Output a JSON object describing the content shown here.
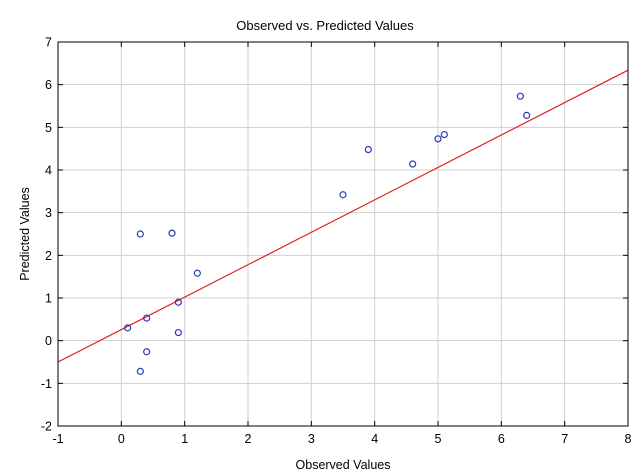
{
  "chart_data": {
    "type": "scatter",
    "title": "Observed vs. Predicted Values",
    "xlabel": "Observed Values",
    "ylabel": "Predicted Values",
    "xlim": [
      -1,
      8
    ],
    "ylim": [
      -2,
      7
    ],
    "xticks": [
      -1,
      0,
      1,
      2,
      3,
      4,
      5,
      6,
      7,
      8
    ],
    "yticks": [
      -2,
      -1,
      0,
      1,
      2,
      3,
      4,
      5,
      6,
      7
    ],
    "grid": true,
    "points": [
      {
        "x": 0.1,
        "y": 0.3
      },
      {
        "x": 0.3,
        "y": 2.5
      },
      {
        "x": 0.3,
        "y": -0.72
      },
      {
        "x": 0.4,
        "y": 0.53
      },
      {
        "x": 0.4,
        "y": -0.26
      },
      {
        "x": 0.8,
        "y": 2.52
      },
      {
        "x": 0.9,
        "y": 0.9
      },
      {
        "x": 0.9,
        "y": 0.19
      },
      {
        "x": 1.2,
        "y": 1.58
      },
      {
        "x": 3.5,
        "y": 3.42
      },
      {
        "x": 3.9,
        "y": 4.48
      },
      {
        "x": 4.6,
        "y": 4.14
      },
      {
        "x": 5.0,
        "y": 4.73
      },
      {
        "x": 5.1,
        "y": 4.83
      },
      {
        "x": 6.3,
        "y": 5.73
      },
      {
        "x": 6.4,
        "y": 5.28
      }
    ],
    "fit_line": {
      "intercept": 0.26,
      "slope": 0.76
    },
    "colors": {
      "points": "#2a3bb5",
      "fit_line": "#e0201c",
      "grid": "#cfcfcf"
    }
  }
}
